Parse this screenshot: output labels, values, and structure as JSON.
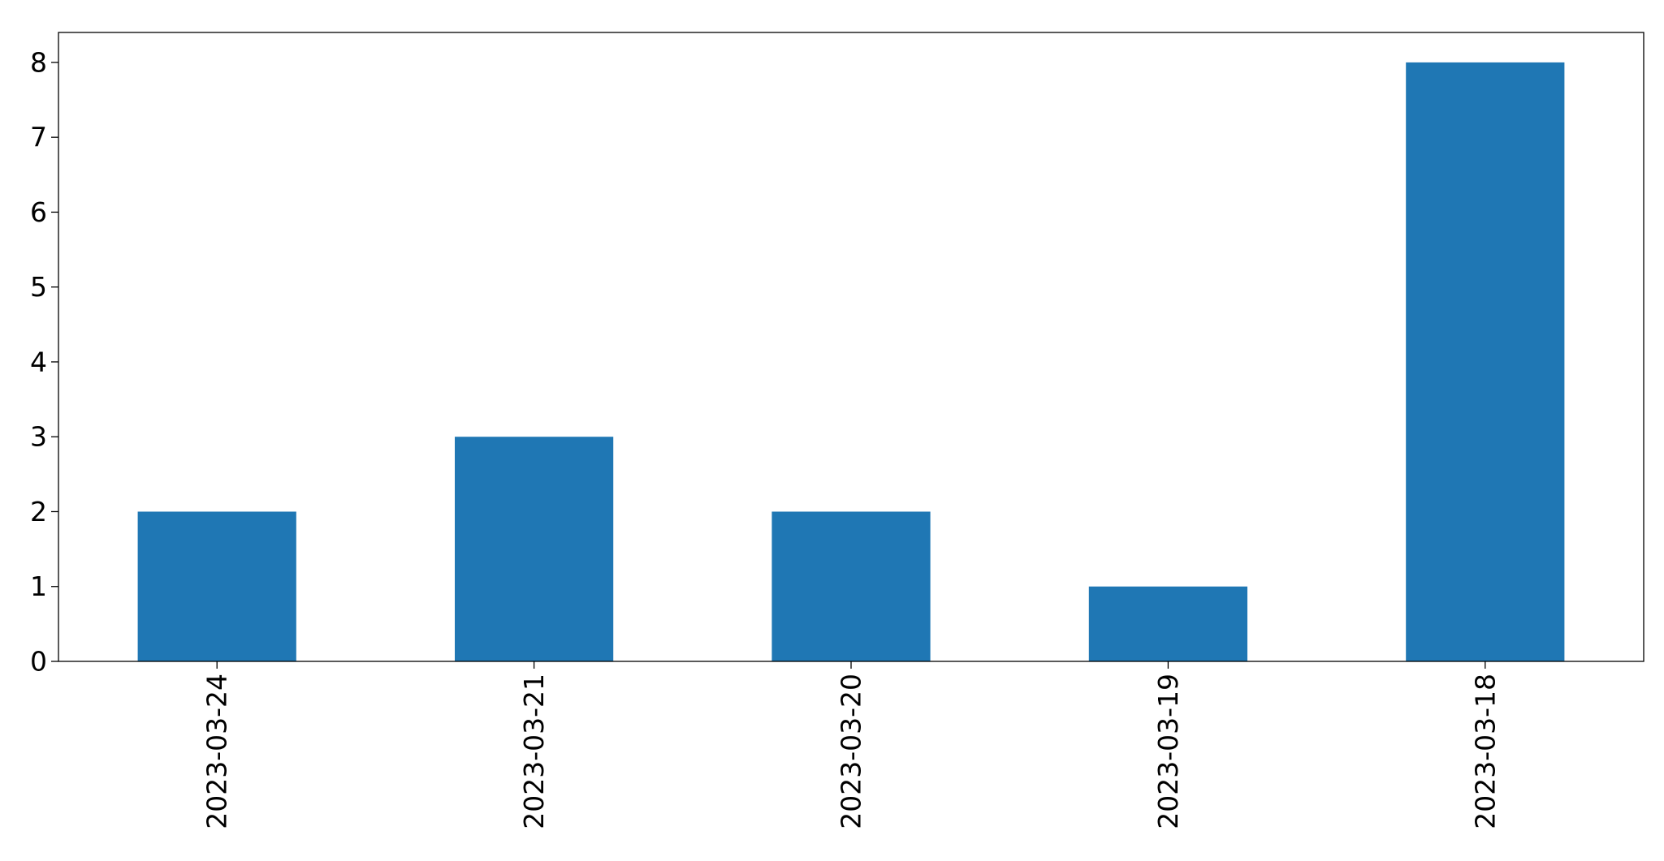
{
  "chart_data": {
    "type": "bar",
    "categories": [
      "2023-03-24",
      "2023-03-21",
      "2023-03-20",
      "2023-03-19",
      "2023-03-18"
    ],
    "values": [
      2,
      3,
      2,
      1,
      8
    ],
    "yticks": [
      0,
      1,
      2,
      3,
      4,
      5,
      6,
      7,
      8
    ],
    "ylim": [
      0,
      8.4
    ],
    "xlabel": "",
    "ylabel": "",
    "title": "",
    "grid": false,
    "x_tick_rotation": "vertical",
    "bar_color": "#1f77b4"
  }
}
